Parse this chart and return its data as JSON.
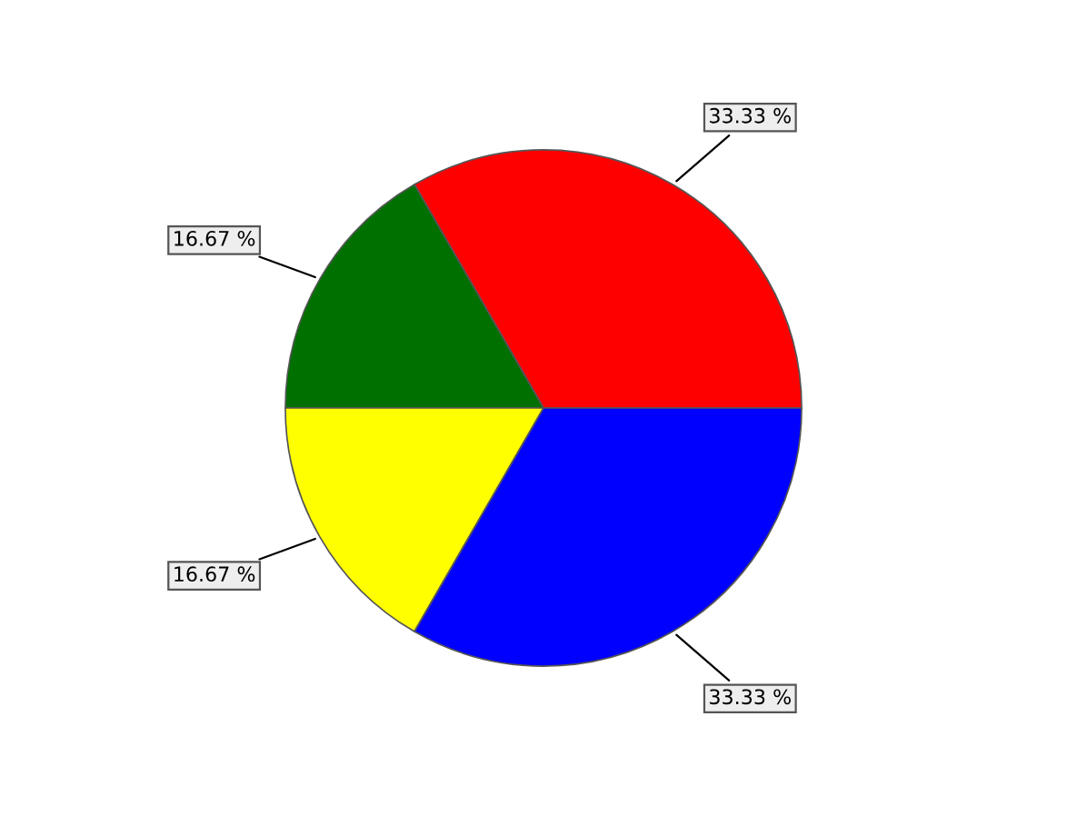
{
  "chart_data": {
    "type": "pie",
    "categories": [
      null,
      null,
      null,
      null
    ],
    "values": [
      33.33,
      16.67,
      16.67,
      33.33
    ],
    "colors": [
      "#ff0000",
      "#007000",
      "#ffff00",
      "#0000ff"
    ],
    "value_labels": [
      "33.33 %",
      "16.67 %",
      "16.67 %",
      "33.33 %"
    ],
    "legend": false
  }
}
